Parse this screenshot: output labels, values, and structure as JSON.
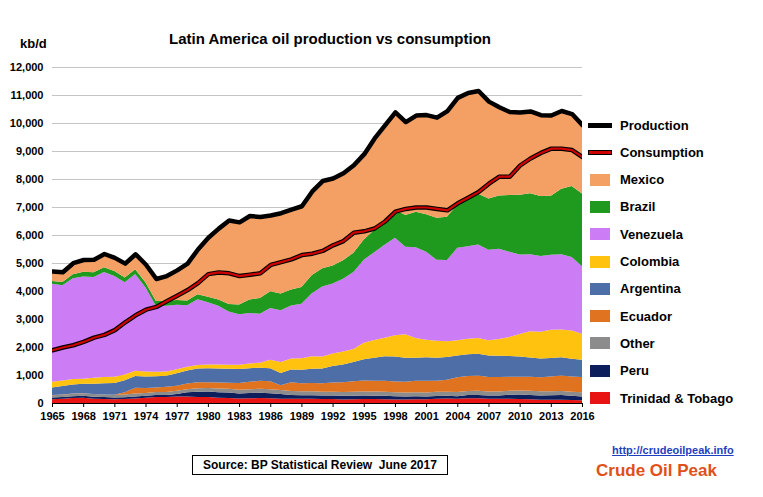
{
  "chart_data": {
    "type": "area",
    "title": "Latin America oil production vs consumption",
    "y_label": "kb/d",
    "stacked": true,
    "grid": true,
    "legend": "right",
    "x": [
      1965,
      1966,
      1967,
      1968,
      1969,
      1970,
      1971,
      1972,
      1973,
      1974,
      1975,
      1976,
      1977,
      1978,
      1979,
      1980,
      1981,
      1982,
      1983,
      1984,
      1985,
      1986,
      1987,
      1988,
      1989,
      1990,
      1991,
      1992,
      1993,
      1994,
      1995,
      1996,
      1997,
      1998,
      1999,
      2000,
      2001,
      2002,
      2003,
      2004,
      2005,
      2006,
      2007,
      2008,
      2009,
      2010,
      2011,
      2012,
      2013,
      2014,
      2015,
      2016
    ],
    "xlim": [
      1965,
      2016
    ],
    "xticks": [
      1965,
      1968,
      1971,
      1974,
      1977,
      1980,
      1983,
      1986,
      1989,
      1992,
      1995,
      1998,
      2001,
      2004,
      2007,
      2010,
      2013,
      2016
    ],
    "ylim": [
      0,
      12000
    ],
    "yticks": [
      0,
      {
        "value": 1000,
        "label": "1,000"
      },
      {
        "value": 2000,
        "label": "2,000"
      },
      {
        "value": 3000,
        "label": "3,000"
      },
      {
        "value": 4000,
        "label": "4,000"
      },
      {
        "value": 5000,
        "label": "5,000"
      },
      {
        "value": 6000,
        "label": "6,000"
      },
      {
        "value": 7000,
        "label": "7,000"
      },
      {
        "value": 8000,
        "label": "8,000"
      },
      {
        "value": 9000,
        "label": "9,000"
      },
      {
        "value": 10000,
        "label": "10,000"
      },
      {
        "value": 11000,
        "label": "11,000"
      },
      {
        "value": 12000,
        "label": "12,000"
      }
    ],
    "series": [
      {
        "name": "Production",
        "type": "line",
        "color": "#000000",
        "values": [
          4713,
          4689,
          5011,
          5125,
          5131,
          5339,
          5201,
          4996,
          5330,
          4955,
          4447,
          4552,
          4755,
          4995,
          5500,
          5922,
          6245,
          6537,
          6470,
          6695,
          6661,
          6713,
          6795,
          6925,
          7045,
          7573,
          7945,
          8035,
          8225,
          8508,
          8905,
          9467,
          9930,
          10401,
          10052,
          10284,
          10300,
          10210,
          10443,
          10915,
          11092,
          11159,
          10781,
          10578,
          10411,
          10396,
          10430,
          10299,
          10284,
          10446,
          10338,
          9942
        ]
      },
      {
        "name": "Consumption",
        "type": "line",
        "color": "#d00000",
        "values": [
          1900,
          2000,
          2080,
          2200,
          2350,
          2450,
          2620,
          2900,
          3150,
          3350,
          3450,
          3650,
          3850,
          4050,
          4300,
          4620,
          4680,
          4650,
          4550,
          4600,
          4650,
          4950,
          5050,
          5150,
          5300,
          5350,
          5450,
          5650,
          5800,
          6100,
          6150,
          6250,
          6500,
          6850,
          6950,
          7000,
          7000,
          6950,
          6900,
          7150,
          7350,
          7550,
          7850,
          8100,
          8100,
          8500,
          8750,
          8950,
          9100,
          9100,
          9050,
          8800
        ]
      },
      {
        "name": "Mexico",
        "type": "area",
        "color": "#f4a064",
        "values": [
          360,
          370,
          410,
          440,
          460,
          490,
          490,
          510,
          550,
          650,
          800,
          900,
          1080,
          1330,
          1620,
          2130,
          2550,
          3000,
          2950,
          3000,
          2910,
          2720,
          2880,
          2870,
          2900,
          3000,
          3130,
          3120,
          3130,
          3140,
          3070,
          3280,
          3410,
          3500,
          3340,
          3450,
          3560,
          3590,
          3790,
          3830,
          3770,
          3690,
          3480,
          3170,
          2980,
          2960,
          2940,
          2910,
          2880,
          2790,
          2590,
          2460
        ]
      },
      {
        "name": "Brazil",
        "type": "area",
        "color": "#1f9a1f",
        "values": [
          95,
          115,
          145,
          165,
          170,
          170,
          175,
          170,
          175,
          180,
          180,
          175,
          170,
          170,
          175,
          190,
          220,
          270,
          350,
          480,
          560,
          600,
          600,
          570,
          600,
          650,
          650,
          650,
          660,
          690,
          720,
          800,
          870,
          1000,
          1130,
          1270,
          1340,
          1500,
          1550,
          1540,
          1720,
          1810,
          1830,
          1900,
          2030,
          2130,
          2180,
          2140,
          2110,
          2340,
          2530,
          2600
        ]
      },
      {
        "name": "Venezuela",
        "type": "area",
        "color": "#cc7cf4",
        "values": [
          3500,
          3400,
          3600,
          3650,
          3600,
          3750,
          3600,
          3300,
          3450,
          3000,
          2350,
          2350,
          2300,
          2200,
          2350,
          2230,
          2100,
          1900,
          1800,
          1800,
          1750,
          1850,
          1850,
          1900,
          1950,
          2250,
          2500,
          2500,
          2600,
          2750,
          2960,
          3140,
          3320,
          3480,
          3130,
          3240,
          3140,
          2900,
          2900,
          3300,
          3310,
          3340,
          3230,
          3220,
          3040,
          2840,
          2750,
          2700,
          2680,
          2690,
          2630,
          2410
        ]
      },
      {
        "name": "Colombia",
        "type": "area",
        "color": "#ffc20e",
        "values": [
          200,
          200,
          195,
          180,
          215,
          225,
          220,
          200,
          190,
          175,
          160,
          150,
          145,
          135,
          125,
          130,
          140,
          145,
          160,
          170,
          180,
          305,
          390,
          385,
          410,
          446,
          430,
          440,
          460,
          460,
          590,
          630,
          660,
          760,
          840,
          711,
          627,
          601,
          564,
          551,
          554,
          559,
          548,
          600,
          685,
          801,
          935,
          958,
          1004,
          990,
          1005,
          924
        ]
      },
      {
        "name": "Argentina",
        "type": "area",
        "color": "#4d6ea6",
        "values": [
          275,
          300,
          325,
          345,
          365,
          400,
          425,
          435,
          420,
          410,
          400,
          400,
          440,
          465,
          490,
          500,
          505,
          500,
          500,
          490,
          470,
          460,
          440,
          460,
          480,
          517,
          530,
          590,
          630,
          690,
          760,
          820,
          875,
          890,
          850,
          820,
          840,
          820,
          810,
          770,
          770,
          780,
          760,
          760,
          740,
          730,
          690,
          670,
          660,
          650,
          640,
          620
        ]
      },
      {
        "name": "Ecuador",
        "type": "area",
        "color": "#e0731f",
        "values": [
          8,
          7,
          6,
          5,
          4,
          4,
          4,
          80,
          210,
          180,
          165,
          185,
          185,
          205,
          215,
          205,
          215,
          215,
          240,
          260,
          285,
          290,
          175,
          310,
          285,
          290,
          300,
          330,
          350,
          380,
          395,
          390,
          395,
          385,
          385,
          410,
          415,
          401,
          427,
          535,
          541,
          545,
          520,
          514,
          495,
          488,
          501,
          505,
          527,
          557,
          543,
          548
        ]
      },
      {
        "name": "Other",
        "type": "area",
        "color": "#8c8c8c",
        "values": [
          80,
          80,
          85,
          85,
          90,
          90,
          95,
          95,
          100,
          100,
          105,
          105,
          110,
          110,
          120,
          130,
          130,
          135,
          135,
          140,
          140,
          140,
          140,
          140,
          140,
          140,
          140,
          140,
          140,
          140,
          145,
          145,
          145,
          145,
          145,
          145,
          145,
          145,
          145,
          145,
          145,
          145,
          145,
          145,
          145,
          145,
          145,
          145,
          145,
          145,
          145,
          145
        ]
      },
      {
        "name": "Peru",
        "type": "area",
        "color": "#0c1f5c",
        "values": [
          60,
          62,
          65,
          70,
          72,
          70,
          62,
          66,
          70,
          75,
          72,
          77,
          95,
          150,
          190,
          195,
          195,
          195,
          175,
          185,
          190,
          180,
          165,
          140,
          130,
          130,
          120,
          125,
          130,
          128,
          125,
          122,
          120,
          116,
          107,
          100,
          98,
          98,
          92,
          94,
          111,
          116,
          114,
          120,
          145,
          157,
          153,
          153,
          163,
          170,
          146,
          140
        ]
      },
      {
        "name": "Trinidad & Tobago",
        "type": "area",
        "color": "#e81414",
        "values": [
          135,
          155,
          180,
          185,
          155,
          140,
          130,
          140,
          165,
          185,
          215,
          210,
          230,
          230,
          215,
          212,
          190,
          177,
          160,
          170,
          176,
          168,
          155,
          150,
          150,
          150,
          145,
          140,
          125,
          130,
          140,
          140,
          135,
          125,
          125,
          138,
          135,
          155,
          165,
          150,
          171,
          174,
          154,
          149,
          151,
          145,
          136,
          118,
          115,
          114,
          109,
          95
        ]
      }
    ],
    "annotations": [
      "Source: BP Statistical Review  June 2017",
      "http://crudeoilpeak.info",
      "Crude Oil Peak"
    ]
  }
}
